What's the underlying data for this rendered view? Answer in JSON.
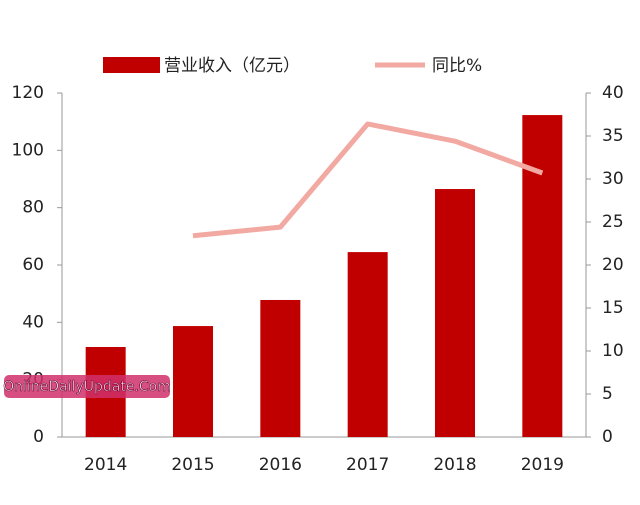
{
  "chart_data": {
    "type": "bar",
    "categories": [
      "2014",
      "2015",
      "2016",
      "2017",
      "2018",
      "2019"
    ],
    "series": [
      {
        "name": "营业收入（亿元）",
        "type": "bar",
        "color": "#c00000",
        "values": [
          31.4,
          38.7,
          47.8,
          64.5,
          86.5,
          112.3
        ]
      },
      {
        "name": "同比%",
        "type": "line",
        "axis": "y2",
        "color": "#f2a9a2",
        "values": [
          null,
          23.4,
          24.4,
          36.4,
          34.4,
          30.7
        ]
      }
    ],
    "ylim": [
      0,
      120
    ],
    "yticks": [
      0,
      20,
      40,
      60,
      80,
      100,
      120
    ],
    "y2lim": [
      0,
      40
    ],
    "y2ticks": [
      0,
      5,
      10,
      15,
      20,
      25,
      30,
      35,
      40
    ],
    "annotation": "OnlineDailyUpdate.Com"
  }
}
